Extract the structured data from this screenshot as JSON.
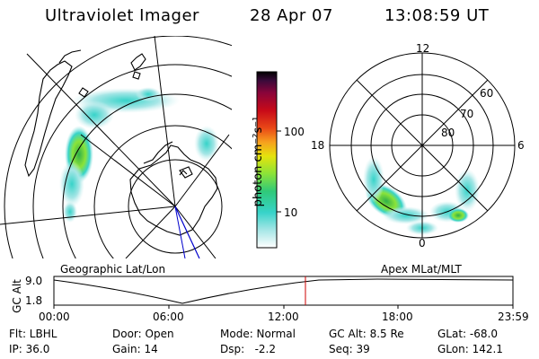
{
  "header": {
    "title": "Ultraviolet Imager",
    "date": "28 Apr 07",
    "time": "13:08:59 UT"
  },
  "colorbar": {
    "unit_label": "photon cm⁻²s⁻¹",
    "ticks": [
      "100",
      "10"
    ],
    "colors": [
      "#ffffff",
      "#a6e6e6",
      "#37d3c9",
      "#2fc979",
      "#8be339",
      "#e5e30d",
      "#f7a01e",
      "#e94817",
      "#c80a18",
      "#8a043a",
      "#3a0a3a",
      "#000000"
    ]
  },
  "geo_panel": {
    "label": "Geographic Lat/Lon"
  },
  "mag_panel": {
    "label": "Apex MLat/MLT",
    "mlt_labels": {
      "top": "12",
      "left": "18",
      "right": "6",
      "bottom": "0"
    },
    "mlat_labels": [
      "60",
      "70",
      "80"
    ]
  },
  "timeline": {
    "ylabel": "GC Alt",
    "y_ticks": [
      "9.0",
      "1.8"
    ],
    "x_ticks": [
      "00:00",
      "06:00",
      "12:00",
      "18:00",
      "23:59"
    ],
    "current_hour": 13.15
  },
  "footer": {
    "flt": "Flt: LBHL",
    "door": "Door: Open",
    "mode": "Mode: Normal",
    "gc_alt": "GC Alt: 8.5 Re",
    "glat": "GLat: -68.0",
    "ip": "IP: 36.0",
    "gain": "Gain: 14",
    "dsp": "Dsp:   -2.2",
    "seq": "Seq: 39",
    "glon": "GLon: 142.1"
  },
  "colors": {
    "accent_marker": "#cc0000",
    "orbit_segment": "#0000cc"
  }
}
